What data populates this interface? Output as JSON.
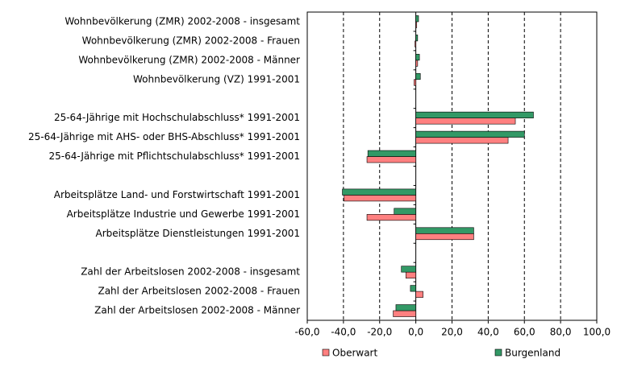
{
  "chart_data": {
    "type": "hbar",
    "categories": [
      "Wohnbevölkerung (ZMR) 2002-2008 - insgesamt",
      "Wohnbevölkerung (ZMR) 2002-2008 - Frauen",
      "Wohnbevölkerung (ZMR) 2002-2008 - Männer",
      "Wohnbevölkerung (VZ) 1991-2001",
      null,
      "25-64-Jährige mit Hochschulabschluss* 1991-2001",
      "25-64-Jährige mit AHS- oder BHS-Abschluss* 1991-2001",
      "25-64-Jährige mit Pflichtschulabschluss* 1991-2001",
      null,
      "Arbeitsplätze Land- und Forstwirtschaft 1991-2001",
      "Arbeitsplätze Industrie und Gewerbe 1991-2001",
      "Arbeitsplätze Dienstleistungen 1991-2001",
      null,
      "Zahl der Arbeitslosen 2002-2008 - insgesamt",
      "Zahl der Arbeitslosen 2002-2008 - Frauen",
      "Zahl der Arbeitslosen 2002-2008 - Männer"
    ],
    "series": [
      {
        "name": "Oberwart",
        "color": "#ff8080",
        "values": [
          0.5,
          -0.5,
          1.0,
          -1.0,
          null,
          55,
          51,
          -27,
          null,
          -39.7,
          -27,
          32,
          null,
          -5.5,
          4,
          -12.5
        ]
      },
      {
        "name": "Burgenland",
        "color": "#339966",
        "values": [
          1.5,
          1.0,
          2.0,
          2.5,
          null,
          65,
          60,
          -26.5,
          null,
          -40.6,
          -12,
          32,
          null,
          -8,
          -3,
          -11
        ]
      }
    ],
    "xlim": [
      -60,
      100
    ],
    "xticks": [
      {
        "value": -60,
        "label": "-60,0"
      },
      {
        "value": -40,
        "label": "-40,0"
      },
      {
        "value": -20,
        "label": "-20,0"
      },
      {
        "value": 0,
        "label": "0,0"
      },
      {
        "value": 20,
        "label": "20,0"
      },
      {
        "value": 40,
        "label": "40,0"
      },
      {
        "value": 60,
        "label": "60,0"
      },
      {
        "value": 80,
        "label": "80,0"
      },
      {
        "value": 100,
        "label": "100,0"
      }
    ],
    "grid": true,
    "legend": "bottom"
  }
}
